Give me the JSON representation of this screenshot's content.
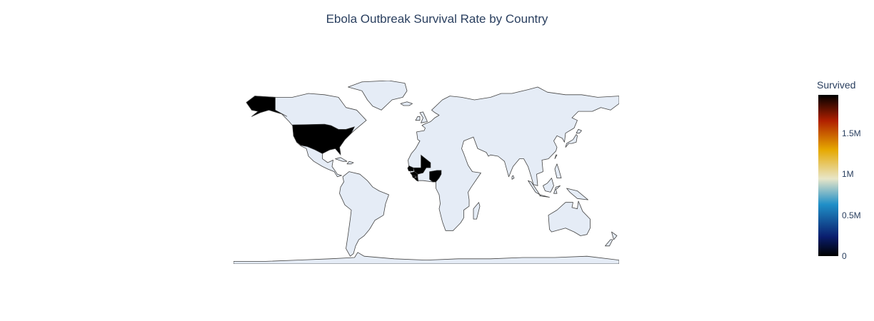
{
  "chart_data": {
    "type": "choropleth",
    "title": "Ebola Outbreak Survival Rate by Country",
    "projection": "equirectangular",
    "colorbar": {
      "title": "Survived",
      "range": [
        0,
        1950000
      ],
      "tick_values": [
        0,
        500000,
        1000000,
        1500000
      ],
      "tick_labels": [
        "0",
        "0.5M",
        "1M",
        "1.5M"
      ],
      "colorscale": [
        "#000000",
        "#0a1e6e",
        "#1f8fc8",
        "#e8e6c8",
        "#e6a800",
        "#b02000",
        "#000000"
      ]
    },
    "regions": [
      {
        "name": "United States",
        "value": 1950000
      },
      {
        "name": "Mali",
        "value": 1950000
      },
      {
        "name": "Guinea",
        "value": 1950000
      },
      {
        "name": "Sierra Leone",
        "value": 1950000
      },
      {
        "name": "Liberia",
        "value": 1950000
      },
      {
        "name": "Nigeria",
        "value": 1950000
      },
      {
        "name": "Senegal",
        "value": 1950000
      }
    ]
  },
  "colors": {
    "land": "#e5ecf6",
    "coastline": "#444444",
    "text": "#2a3f5f",
    "highlight": "#000000"
  }
}
